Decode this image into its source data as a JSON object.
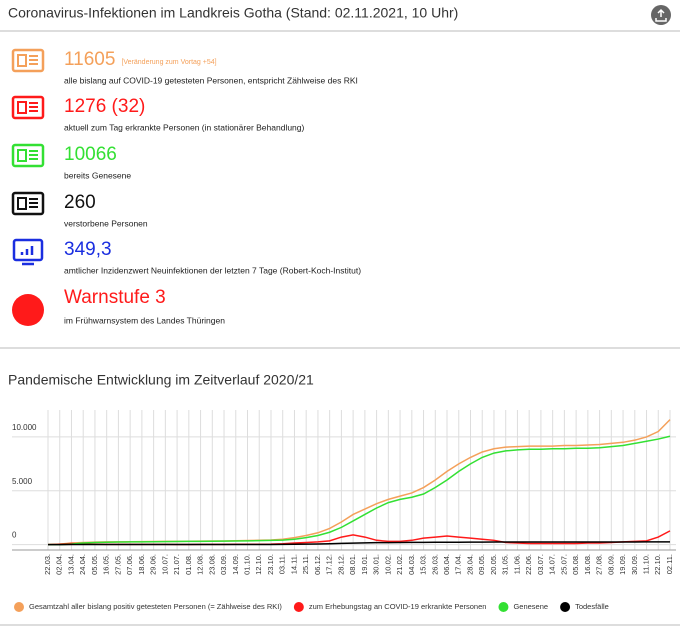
{
  "header": {
    "title": "Coronavirus-Infektionen im Landkreis Gotha (Stand: 02.11.2021, 10 Uhr)"
  },
  "stats": [
    {
      "value": "11605",
      "note": "[Veränderung zum Vortag +54]",
      "description": "alle bislang auf COVID-19 getesteten Personen, entspricht Zählweise des RKI",
      "color": "#f4a05a"
    },
    {
      "value": "1276 (32)",
      "description": "aktuell zum Tag erkrankte Personen (in stationärer Behandlung)",
      "color": "#ff1a1a"
    },
    {
      "value": "10066",
      "description": "bereits Genesene",
      "color": "#33e033"
    },
    {
      "value": "260",
      "description": "verstorbene Personen",
      "color": "#111111"
    },
    {
      "value": "349,3",
      "description": "amtlicher Inzidenzwert Neuinfektionen der letzten 7 Tage (Robert-Koch-Institut)",
      "color": "#1a2ee0"
    },
    {
      "value": "Warnstufe 3",
      "description": " im Frühwarnsystem des Landes Thüringen",
      "color": "#ff1a1a"
    }
  ],
  "chart_data": {
    "type": "line",
    "title": "Pandemische Entwicklung im Zeitverlauf 2020/21",
    "categories": [
      "22.03.",
      "02.04.",
      "13.04.",
      "24.04.",
      "05.05.",
      "16.05.",
      "27.05.",
      "07.06.",
      "18.06.",
      "29.06.",
      "10.07.",
      "21.07.",
      "01.08.",
      "12.08.",
      "23.08.",
      "03.09.",
      "14.09.",
      "01.10.",
      "12.10.",
      "23.10.",
      "03.11.",
      "14.11.",
      "25.11.",
      "06.12.",
      "17.12.",
      "28.12.",
      "08.01.",
      "19.01.",
      "30.01.",
      "10.02.",
      "21.02.",
      "04.03.",
      "15.03.",
      "26.03.",
      "06.04.",
      "17.04.",
      "28.04.",
      "09.05.",
      "20.05.",
      "31.05.",
      "11.06.",
      "22.06.",
      "03.07.",
      "14.07.",
      "25.07.",
      "05.08.",
      "16.08.",
      "27.08.",
      "08.09.",
      "19.09.",
      "30.09.",
      "11.10.",
      "22.10.",
      "02.11."
    ],
    "series": [
      {
        "name": "Gesamtzahl aller bislang positiv getesteten Personen (= Zählweise des RKI)",
        "color": "#f4a05a",
        "values": [
          0,
          50,
          150,
          200,
          230,
          250,
          260,
          270,
          280,
          290,
          300,
          300,
          310,
          320,
          330,
          340,
          360,
          380,
          400,
          430,
          500,
          650,
          850,
          1100,
          1500,
          2100,
          2800,
          3300,
          3800,
          4200,
          4500,
          4800,
          5300,
          6000,
          6800,
          7500,
          8100,
          8600,
          8900,
          9050,
          9100,
          9150,
          9150,
          9150,
          9200,
          9200,
          9250,
          9300,
          9400,
          9500,
          9700,
          10000,
          10500,
          11605
        ]
      },
      {
        "name": "zum Erhebungstag an COVID-19 erkrankte Personen",
        "color": "#ff1a1a",
        "values": [
          0,
          50,
          100,
          50,
          30,
          20,
          20,
          20,
          20,
          20,
          20,
          10,
          10,
          20,
          20,
          20,
          30,
          30,
          30,
          40,
          80,
          150,
          200,
          250,
          350,
          700,
          900,
          700,
          400,
          300,
          300,
          400,
          600,
          700,
          800,
          700,
          600,
          500,
          400,
          200,
          150,
          100,
          100,
          100,
          100,
          100,
          150,
          150,
          200,
          250,
          300,
          350,
          700,
          1276
        ]
      },
      {
        "name": "Genesene",
        "color": "#33e033",
        "values": [
          0,
          0,
          50,
          150,
          200,
          220,
          240,
          250,
          260,
          270,
          280,
          290,
          300,
          300,
          310,
          320,
          330,
          350,
          370,
          390,
          420,
          500,
          650,
          850,
          1150,
          1600,
          2200,
          2800,
          3400,
          3900,
          4200,
          4400,
          4700,
          5300,
          6000,
          6800,
          7500,
          8100,
          8500,
          8700,
          8800,
          8850,
          8850,
          8900,
          8900,
          8950,
          8950,
          9000,
          9100,
          9200,
          9400,
          9600,
          9800,
          10066
        ]
      },
      {
        "name": "Todesfälle",
        "color": "#000000",
        "values": [
          0,
          0,
          5,
          10,
          15,
          15,
          15,
          15,
          15,
          15,
          15,
          15,
          15,
          15,
          15,
          15,
          15,
          15,
          15,
          15,
          20,
          30,
          40,
          60,
          80,
          110,
          140,
          160,
          180,
          190,
          200,
          205,
          210,
          215,
          220,
          225,
          230,
          235,
          240,
          240,
          240,
          240,
          240,
          240,
          240,
          240,
          240,
          240,
          242,
          244,
          246,
          250,
          255,
          260
        ]
      }
    ],
    "ylim": [
      -500,
      12500
    ],
    "yticks": [
      0,
      {
        "value": 5000,
        "label": "5.000"
      },
      {
        "value": 10000,
        "label": "10.000"
      }
    ],
    "grid": true
  }
}
